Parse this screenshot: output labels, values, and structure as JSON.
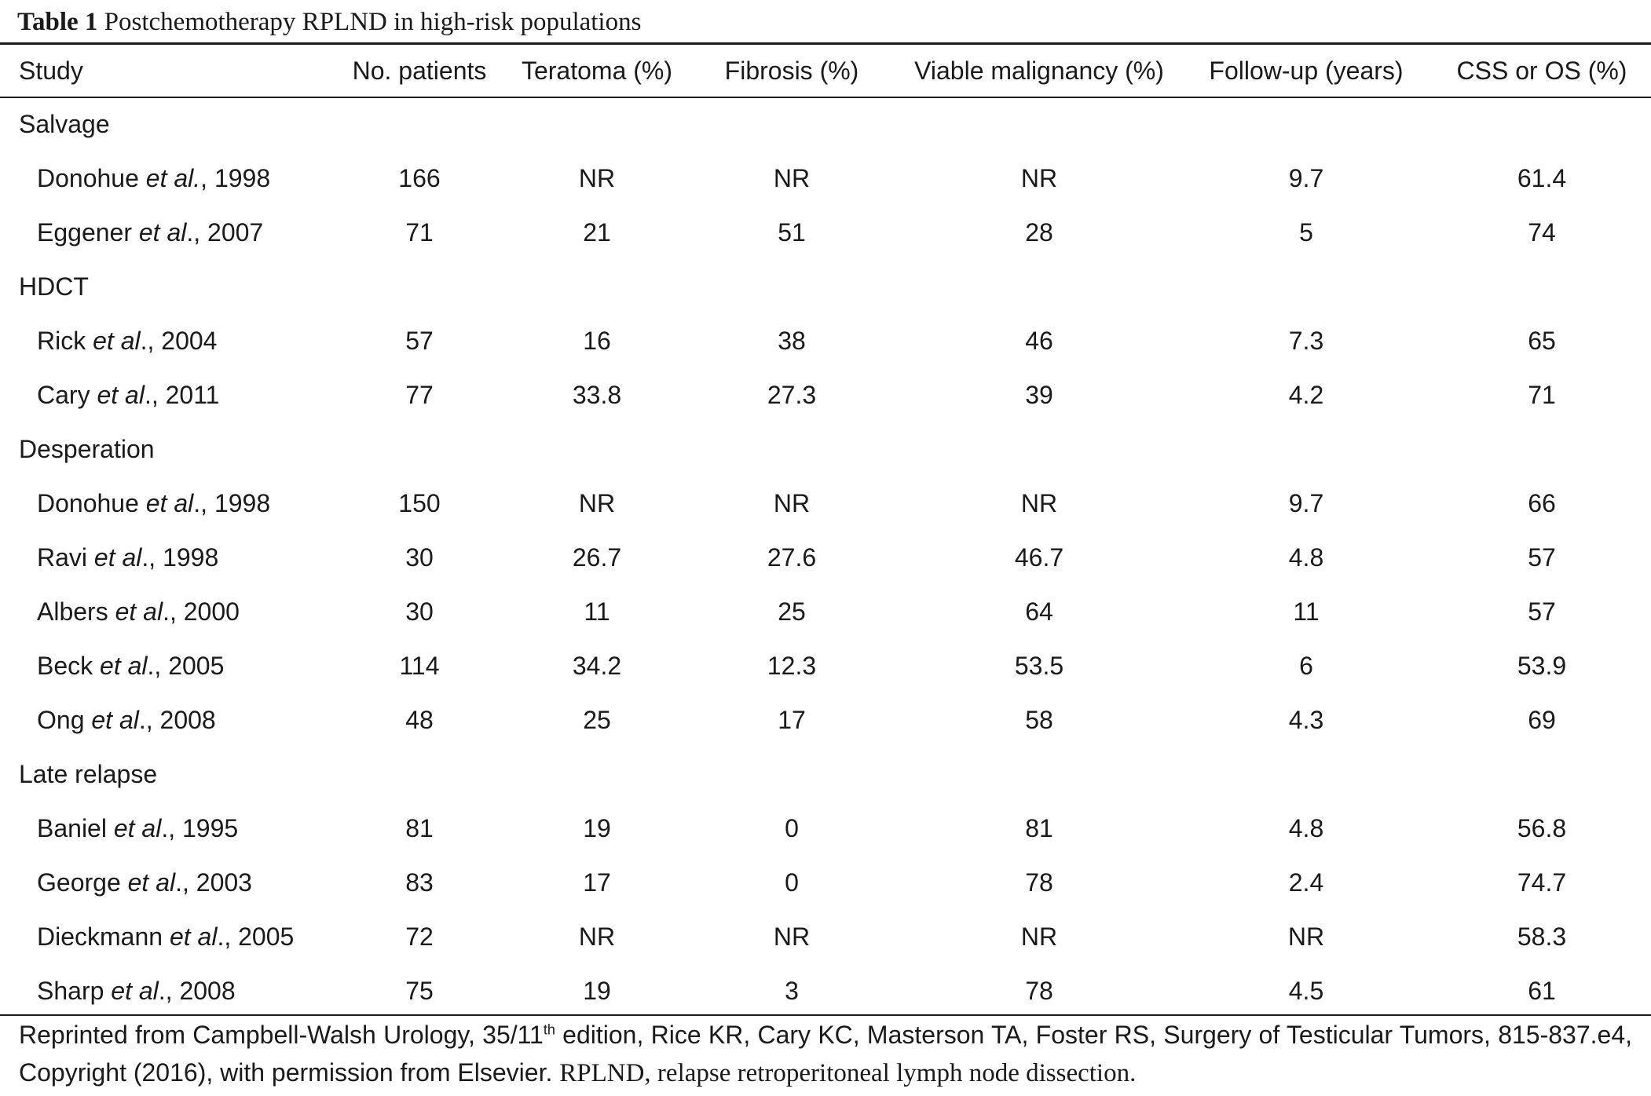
{
  "table": {
    "caption_label": "Table 1",
    "caption_text": "Postchemotherapy RPLND in high-risk populations",
    "headers": [
      "Study",
      "No. patients",
      "Teratoma (%)",
      "Fibrosis (%)",
      "Viable malignancy (%)",
      "Follow-up (years)",
      "CSS or OS (%)"
    ],
    "groups": [
      {
        "label": "Salvage",
        "rows": [
          {
            "author": "Donohue",
            "etal": "et al.",
            "year": ", 1998",
            "cells": [
              "166",
              "NR",
              "NR",
              "NR",
              "9.7",
              "61.4"
            ]
          },
          {
            "author": "Eggener",
            "etal": "et al",
            "year": "., 2007",
            "cells": [
              "71",
              "21",
              "51",
              "28",
              "5",
              "74"
            ]
          }
        ]
      },
      {
        "label": "HDCT",
        "rows": [
          {
            "author": "Rick",
            "etal": "et al",
            "year": "., 2004",
            "cells": [
              "57",
              "16",
              "38",
              "46",
              "7.3",
              "65"
            ]
          },
          {
            "author": "Cary",
            "etal": "et al",
            "year": "., 2011",
            "cells": [
              "77",
              "33.8",
              "27.3",
              "39",
              "4.2",
              "71"
            ]
          }
        ]
      },
      {
        "label": "Desperation",
        "rows": [
          {
            "author": "Donohue",
            "etal": "et al",
            "year": "., 1998",
            "cells": [
              "150",
              "NR",
              "NR",
              "NR",
              "9.7",
              "66"
            ]
          },
          {
            "author": "Ravi",
            "etal": "et al",
            "year": "., 1998",
            "cells": [
              "30",
              "26.7",
              "27.6",
              "46.7",
              "4.8",
              "57"
            ]
          },
          {
            "author": "Albers",
            "etal": "et al",
            "year": "., 2000",
            "cells": [
              "30",
              "11",
              "25",
              "64",
              "11",
              "57"
            ]
          },
          {
            "author": "Beck",
            "etal": "et al",
            "year": "., 2005",
            "cells": [
              "114",
              "34.2",
              "12.3",
              "53.5",
              "6",
              "53.9"
            ]
          },
          {
            "author": "Ong",
            "etal": "et al",
            "year": "., 2008",
            "cells": [
              "48",
              "25",
              "17",
              "58",
              "4.3",
              "69"
            ]
          }
        ]
      },
      {
        "label": "Late relapse",
        "rows": [
          {
            "author": "Baniel",
            "etal": "et al",
            "year": "., 1995",
            "cells": [
              "81",
              "19",
              "0",
              "81",
              "4.8",
              "56.8"
            ]
          },
          {
            "author": "George",
            "etal": "et al",
            "year": "., 2003",
            "cells": [
              "83",
              "17",
              "0",
              "78",
              "2.4",
              "74.7"
            ]
          },
          {
            "author": "Dieckmann",
            "etal": "et al",
            "year": "., 2005",
            "cells": [
              "72",
              "NR",
              "NR",
              "NR",
              "NR",
              "58.3"
            ]
          },
          {
            "author": "Sharp",
            "etal": "et al",
            "year": "., 2008",
            "cells": [
              "75",
              "19",
              "3",
              "78",
              "4.5",
              "61"
            ]
          }
        ]
      }
    ]
  },
  "footnote": {
    "part1": "Reprinted from Campbell-Walsh Urology, 35/11",
    "sup": "th",
    "part2": " edition, Rice KR, Cary KC, Masterson TA, Foster RS, Surgery of Testicular Tumors, 815-837.e4, Copyright (2016), with permission from Elsevier. ",
    "part3": "RPLND, relapse retroperitoneal lymph node dissection."
  }
}
